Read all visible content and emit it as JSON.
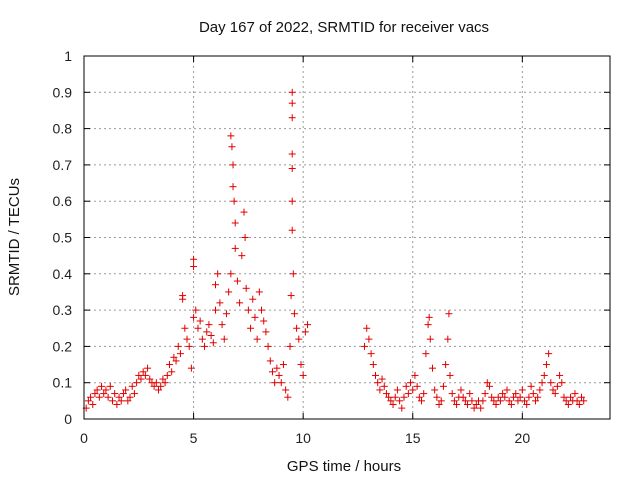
{
  "chart_data": {
    "type": "scatter",
    "title": "Day 167 of 2022, SRMTID for receiver vacs",
    "xlabel": "GPS time / hours",
    "ylabel": "SRMTID / TECUs",
    "xlim": [
      0,
      24
    ],
    "ylim": [
      0,
      1
    ],
    "xticks": [
      0,
      5,
      10,
      15,
      20
    ],
    "yticks": [
      0,
      0.1,
      0.2,
      0.3,
      0.4,
      0.5,
      0.6,
      0.7,
      0.8,
      0.9,
      1
    ],
    "xtick_labels": [
      "0",
      "5",
      "10",
      "15",
      "20"
    ],
    "ytick_labels": [
      "0",
      "0.1",
      "0.2",
      "0.3",
      "0.4",
      "0.5",
      "0.6",
      "0.7",
      "0.8",
      "0.9",
      "1"
    ],
    "grid": true,
    "marker": "+",
    "color": "#e00000",
    "series": [
      {
        "name": "SRMTID",
        "points": [
          [
            0.1,
            0.03
          ],
          [
            0.2,
            0.05
          ],
          [
            0.3,
            0.06
          ],
          [
            0.4,
            0.04
          ],
          [
            0.5,
            0.07
          ],
          [
            0.6,
            0.08
          ],
          [
            0.7,
            0.06
          ],
          [
            0.8,
            0.09
          ],
          [
            0.9,
            0.07
          ],
          [
            1.0,
            0.08
          ],
          [
            1.1,
            0.06
          ],
          [
            1.2,
            0.09
          ],
          [
            1.3,
            0.05
          ],
          [
            1.4,
            0.07
          ],
          [
            1.5,
            0.04
          ],
          [
            1.6,
            0.06
          ],
          [
            1.7,
            0.05
          ],
          [
            1.8,
            0.07
          ],
          [
            1.9,
            0.08
          ],
          [
            2.0,
            0.05
          ],
          [
            2.1,
            0.06
          ],
          [
            2.2,
            0.09
          ],
          [
            2.3,
            0.07
          ],
          [
            2.4,
            0.1
          ],
          [
            2.5,
            0.12
          ],
          [
            2.6,
            0.11
          ],
          [
            2.7,
            0.13
          ],
          [
            2.8,
            0.12
          ],
          [
            2.9,
            0.14
          ],
          [
            3.0,
            0.11
          ],
          [
            3.1,
            0.1
          ],
          [
            3.2,
            0.09
          ],
          [
            3.3,
            0.1
          ],
          [
            3.4,
            0.08
          ],
          [
            3.5,
            0.09
          ],
          [
            3.6,
            0.11
          ],
          [
            3.7,
            0.1
          ],
          [
            3.8,
            0.12
          ],
          [
            3.9,
            0.15
          ],
          [
            4.0,
            0.13
          ],
          [
            4.1,
            0.17
          ],
          [
            4.2,
            0.16
          ],
          [
            4.3,
            0.2
          ],
          [
            4.4,
            0.18
          ],
          [
            4.5,
            0.33
          ],
          [
            4.5,
            0.34
          ],
          [
            4.6,
            0.25
          ],
          [
            4.7,
            0.22
          ],
          [
            4.8,
            0.2
          ],
          [
            4.9,
            0.14
          ],
          [
            5.0,
            0.28
          ],
          [
            5.0,
            0.42
          ],
          [
            5.0,
            0.44
          ],
          [
            5.1,
            0.3
          ],
          [
            5.2,
            0.25
          ],
          [
            5.3,
            0.27
          ],
          [
            5.4,
            0.22
          ],
          [
            5.5,
            0.2
          ],
          [
            5.6,
            0.24
          ],
          [
            5.7,
            0.26
          ],
          [
            5.8,
            0.23
          ],
          [
            5.9,
            0.21
          ],
          [
            6.0,
            0.3
          ],
          [
            6.0,
            0.37
          ],
          [
            6.1,
            0.4
          ],
          [
            6.2,
            0.32
          ],
          [
            6.3,
            0.26
          ],
          [
            6.4,
            0.22
          ],
          [
            6.5,
            0.29
          ],
          [
            6.6,
            0.35
          ],
          [
            6.7,
            0.4
          ],
          [
            6.7,
            0.78
          ],
          [
            6.75,
            0.75
          ],
          [
            6.8,
            0.7
          ],
          [
            6.8,
            0.64
          ],
          [
            6.85,
            0.6
          ],
          [
            6.9,
            0.54
          ],
          [
            6.9,
            0.47
          ],
          [
            7.0,
            0.38
          ],
          [
            7.1,
            0.32
          ],
          [
            7.2,
            0.45
          ],
          [
            7.3,
            0.57
          ],
          [
            7.35,
            0.5
          ],
          [
            7.4,
            0.36
          ],
          [
            7.5,
            0.3
          ],
          [
            7.6,
            0.25
          ],
          [
            7.7,
            0.33
          ],
          [
            7.8,
            0.28
          ],
          [
            7.9,
            0.22
          ],
          [
            8.0,
            0.35
          ],
          [
            8.1,
            0.3
          ],
          [
            8.2,
            0.27
          ],
          [
            8.3,
            0.24
          ],
          [
            8.4,
            0.2
          ],
          [
            8.5,
            0.16
          ],
          [
            8.6,
            0.13
          ],
          [
            8.7,
            0.1
          ],
          [
            8.8,
            0.14
          ],
          [
            8.9,
            0.12
          ],
          [
            9.0,
            0.1
          ],
          [
            9.1,
            0.15
          ],
          [
            9.2,
            0.08
          ],
          [
            9.3,
            0.06
          ],
          [
            9.4,
            0.2
          ],
          [
            9.45,
            0.34
          ],
          [
            9.5,
            0.52
          ],
          [
            9.5,
            0.6
          ],
          [
            9.5,
            0.69
          ],
          [
            9.5,
            0.73
          ],
          [
            9.5,
            0.83
          ],
          [
            9.5,
            0.87
          ],
          [
            9.5,
            0.9
          ],
          [
            9.55,
            0.4
          ],
          [
            9.6,
            0.29
          ],
          [
            9.7,
            0.25
          ],
          [
            9.8,
            0.22
          ],
          [
            9.9,
            0.15
          ],
          [
            10.0,
            0.12
          ],
          [
            10.1,
            0.24
          ],
          [
            10.2,
            0.26
          ],
          [
            12.8,
            0.2
          ],
          [
            12.9,
            0.25
          ],
          [
            13.0,
            0.22
          ],
          [
            13.1,
            0.18
          ],
          [
            13.2,
            0.15
          ],
          [
            13.3,
            0.12
          ],
          [
            13.4,
            0.1
          ],
          [
            13.5,
            0.08
          ],
          [
            13.6,
            0.11
          ],
          [
            13.7,
            0.09
          ],
          [
            13.8,
            0.07
          ],
          [
            13.9,
            0.06
          ],
          [
            14.0,
            0.05
          ],
          [
            14.1,
            0.04
          ],
          [
            14.2,
            0.06
          ],
          [
            14.3,
            0.08
          ],
          [
            14.4,
            0.05
          ],
          [
            14.5,
            0.03
          ],
          [
            14.6,
            0.06
          ],
          [
            14.7,
            0.09
          ],
          [
            14.8,
            0.07
          ],
          [
            14.9,
            0.1
          ],
          [
            15.0,
            0.08
          ],
          [
            15.1,
            0.12
          ],
          [
            15.2,
            0.09
          ],
          [
            15.3,
            0.06
          ],
          [
            15.4,
            0.05
          ],
          [
            15.5,
            0.07
          ],
          [
            15.6,
            0.18
          ],
          [
            15.7,
            0.26
          ],
          [
            15.75,
            0.28
          ],
          [
            15.8,
            0.22
          ],
          [
            15.9,
            0.14
          ],
          [
            16.0,
            0.08
          ],
          [
            16.1,
            0.06
          ],
          [
            16.2,
            0.04
          ],
          [
            16.3,
            0.05
          ],
          [
            16.4,
            0.09
          ],
          [
            16.5,
            0.15
          ],
          [
            16.6,
            0.22
          ],
          [
            16.65,
            0.29
          ],
          [
            16.7,
            0.12
          ],
          [
            16.8,
            0.07
          ],
          [
            16.9,
            0.05
          ],
          [
            17.0,
            0.04
          ],
          [
            17.1,
            0.06
          ],
          [
            17.2,
            0.08
          ],
          [
            17.3,
            0.06
          ],
          [
            17.4,
            0.05
          ],
          [
            17.5,
            0.04
          ],
          [
            17.6,
            0.07
          ],
          [
            17.7,
            0.05
          ],
          [
            17.8,
            0.03
          ],
          [
            17.9,
            0.04
          ],
          [
            18.0,
            0.05
          ],
          [
            18.1,
            0.03
          ],
          [
            18.2,
            0.05
          ],
          [
            18.3,
            0.07
          ],
          [
            18.4,
            0.1
          ],
          [
            18.5,
            0.09
          ],
          [
            18.6,
            0.06
          ],
          [
            18.7,
            0.05
          ],
          [
            18.8,
            0.04
          ],
          [
            18.9,
            0.06
          ],
          [
            19.0,
            0.05
          ],
          [
            19.1,
            0.07
          ],
          [
            19.2,
            0.06
          ],
          [
            19.3,
            0.08
          ],
          [
            19.4,
            0.05
          ],
          [
            19.5,
            0.04
          ],
          [
            19.6,
            0.06
          ],
          [
            19.7,
            0.07
          ],
          [
            19.8,
            0.05
          ],
          [
            19.9,
            0.06
          ],
          [
            20.0,
            0.08
          ],
          [
            20.1,
            0.05
          ],
          [
            20.2,
            0.04
          ],
          [
            20.3,
            0.06
          ],
          [
            20.4,
            0.09
          ],
          [
            20.5,
            0.07
          ],
          [
            20.6,
            0.05
          ],
          [
            20.7,
            0.06
          ],
          [
            20.8,
            0.08
          ],
          [
            20.9,
            0.1
          ],
          [
            21.0,
            0.12
          ],
          [
            21.1,
            0.15
          ],
          [
            21.2,
            0.18
          ],
          [
            21.3,
            0.1
          ],
          [
            21.4,
            0.08
          ],
          [
            21.5,
            0.07
          ],
          [
            21.6,
            0.09
          ],
          [
            21.7,
            0.12
          ],
          [
            21.8,
            0.1
          ],
          [
            21.9,
            0.06
          ],
          [
            22.0,
            0.05
          ],
          [
            22.1,
            0.04
          ],
          [
            22.2,
            0.06
          ],
          [
            22.3,
            0.05
          ],
          [
            22.4,
            0.07
          ],
          [
            22.5,
            0.05
          ],
          [
            22.6,
            0.04
          ],
          [
            22.7,
            0.06
          ],
          [
            22.8,
            0.05
          ]
        ]
      }
    ]
  }
}
